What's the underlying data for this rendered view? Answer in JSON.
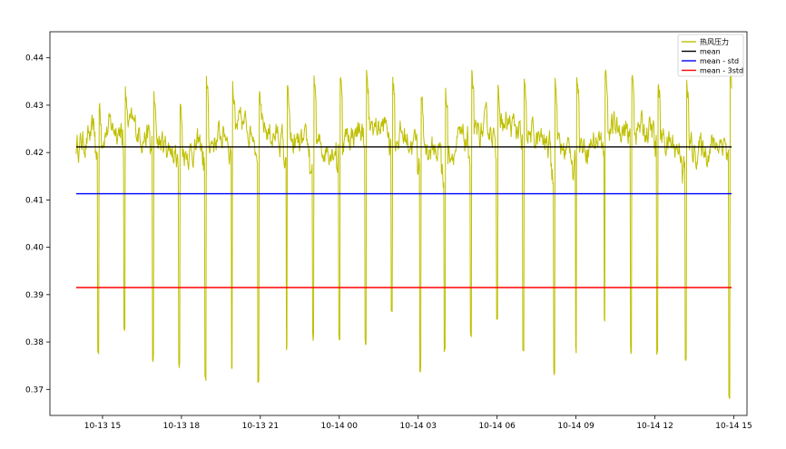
{
  "chart_data": {
    "type": "line",
    "title": "",
    "xlabel": "",
    "ylabel": "",
    "x_range": [
      "10-13 13:00",
      "10-14 15:30"
    ],
    "ylim": [
      0.3645,
      0.4455
    ],
    "grid": false,
    "legend_position": "top-right",
    "x_ticks": [
      {
        "t": "10-13 15:00",
        "label": "10-13 15"
      },
      {
        "t": "10-13 18:00",
        "label": "10-13 18"
      },
      {
        "t": "10-13 21:00",
        "label": "10-13 21"
      },
      {
        "t": "10-14 00:00",
        "label": "10-14 00"
      },
      {
        "t": "10-14 03:00",
        "label": "10-14 03"
      },
      {
        "t": "10-14 06:00",
        "label": "10-14 06"
      },
      {
        "t": "10-14 09:00",
        "label": "10-14 09"
      },
      {
        "t": "10-14 12:00",
        "label": "10-14 12"
      },
      {
        "t": "10-14 15:00",
        "label": "10-14 15"
      }
    ],
    "y_ticks": [
      {
        "value": 0.37,
        "label": "0.37"
      },
      {
        "value": 0.38,
        "label": "0.38"
      },
      {
        "value": 0.39,
        "label": "0.39"
      },
      {
        "value": 0.4,
        "label": "0.40"
      },
      {
        "value": 0.41,
        "label": "0.41"
      },
      {
        "value": 0.42,
        "label": "0.42"
      },
      {
        "value": 0.43,
        "label": "0.43"
      },
      {
        "value": 0.44,
        "label": "0.44"
      }
    ],
    "series": [
      {
        "name": "热风压力",
        "color": "#bfbf00",
        "kind": "line",
        "start": "10-13 14:00",
        "end": "10-14 14:55",
        "baseline_range": [
          0.419,
          0.427
        ],
        "dip_times": [
          "10-13 14:50",
          "10-13 15:50",
          "10-13 16:55",
          "10-13 17:55",
          "10-13 18:55",
          "10-13 19:55",
          "10-13 20:55",
          "10-13 22:00",
          "10-13 23:00",
          "10-14 00:00",
          "10-14 01:00",
          "10-14 02:00",
          "10-14 03:05",
          "10-14 04:00",
          "10-14 05:00",
          "10-14 06:00",
          "10-14 07:00",
          "10-14 08:10",
          "10-14 09:00",
          "10-14 10:05",
          "10-14 11:05",
          "10-14 12:05",
          "10-14 13:10",
          "10-14 14:50"
        ],
        "dip_values": [
          0.3775,
          0.3815,
          0.3755,
          0.3745,
          0.3715,
          0.373,
          0.3712,
          0.3772,
          0.3802,
          0.3802,
          0.3795,
          0.3858,
          0.373,
          0.3775,
          0.3802,
          0.3842,
          0.3765,
          0.373,
          0.3775,
          0.3842,
          0.3775,
          0.3772,
          0.3755,
          0.3672
        ],
        "peak_values": [
          0.431,
          0.434,
          0.433,
          0.431,
          0.436,
          0.434,
          0.434,
          0.434,
          0.437,
          0.437,
          0.437,
          0.436,
          0.433,
          0.434,
          0.437,
          0.434,
          0.436,
          0.436,
          0.437,
          0.438,
          0.438,
          0.436,
          0.436,
          0.438
        ]
      },
      {
        "name": "mean",
        "color": "#000000",
        "kind": "hline",
        "value": 0.4212
      },
      {
        "name": "mean - std",
        "color": "#0000ff",
        "kind": "hline",
        "value": 0.4113
      },
      {
        "name": "mean - 3std",
        "color": "#ff0000",
        "kind": "hline",
        "value": 0.3915
      }
    ]
  }
}
